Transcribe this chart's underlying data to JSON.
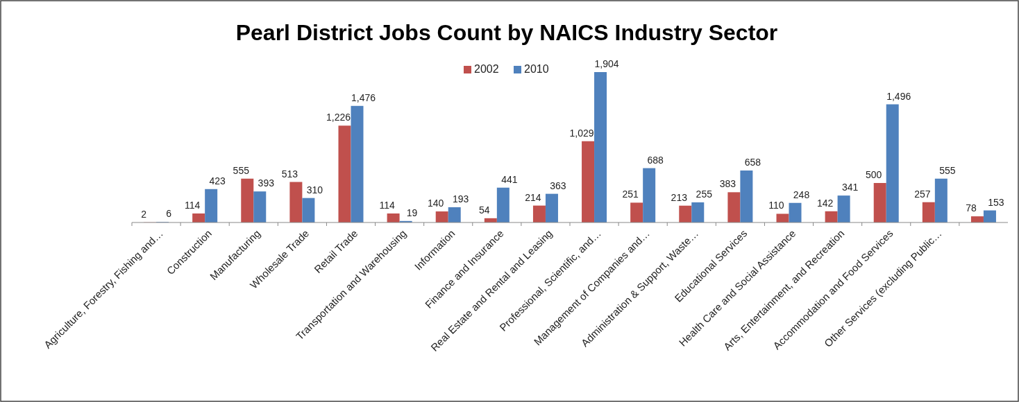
{
  "chart_data": {
    "type": "bar",
    "title": "Pearl District Jobs Count by NAICS Industry Sector",
    "categories": [
      "Agriculture, Forestry, Fishing and…",
      "Construction",
      "Manufacturing",
      "Wholesale Trade",
      "Retail Trade",
      "Transportation and Warehousing",
      "Information",
      "Finance and Insurance",
      "Real Estate and Rental and Leasing",
      "Professional, Scientific, and…",
      "Management of Companies and…",
      "Administration & Support, Waste…",
      "Educational Services",
      "Health Care and Social Assistance",
      "Arts, Entertainment, and Recreation",
      "Accommodation and Food Services",
      "Other Services (excluding Public…",
      null
    ],
    "series": [
      {
        "name": "2002",
        "color": "#c0504d",
        "values": [
          2,
          114,
          555,
          513,
          1226,
          114,
          140,
          54,
          214,
          1029,
          251,
          213,
          383,
          110,
          142,
          500,
          257,
          78
        ],
        "value_labels": [
          "2",
          "114",
          "555",
          "513",
          "1,226",
          "114",
          "140",
          "54",
          "214",
          "1,029",
          "251",
          "213",
          "383",
          "110",
          "142",
          "500",
          "257",
          "78"
        ]
      },
      {
        "name": "2010",
        "color": "#4f81bd",
        "values": [
          6,
          423,
          393,
          310,
          1476,
          19,
          193,
          441,
          363,
          1904,
          688,
          255,
          658,
          248,
          341,
          1496,
          555,
          153
        ],
        "value_labels": [
          "6",
          "423",
          "393",
          "310",
          "1,476",
          "19",
          "193",
          "441",
          "363",
          "1,904",
          "688",
          "255",
          "658",
          "248",
          "341",
          "1,496",
          "555",
          "153"
        ]
      }
    ],
    "legend": "top",
    "grid": false
  }
}
